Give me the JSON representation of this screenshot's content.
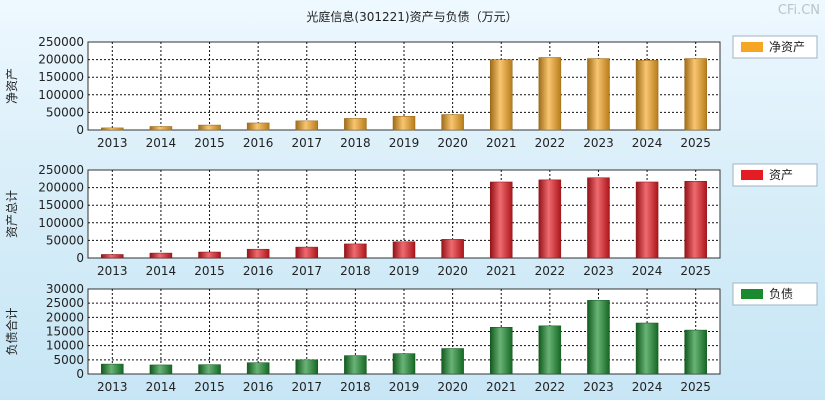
{
  "watermark": "CFi.CN",
  "title": "光庭信息(301221)资产与负债（万元）",
  "chart_data": [
    {
      "type": "bar",
      "ylabel": "净资产",
      "legend": "净资产",
      "color": "#f5a623",
      "ylim": [
        0,
        250000
      ],
      "yticks": [
        0,
        50000,
        100000,
        150000,
        200000,
        250000
      ],
      "categories": [
        "2013",
        "2014",
        "2015",
        "2016",
        "2017",
        "2018",
        "2019",
        "2020",
        "2021",
        "2022",
        "2023",
        "2024",
        "2025"
      ],
      "values": [
        6000,
        10000,
        14000,
        20000,
        26000,
        33000,
        39000,
        44000,
        200000,
        206000,
        203000,
        198000,
        203000
      ]
    },
    {
      "type": "bar",
      "ylabel": "资产总计",
      "legend": "资产",
      "color": "#e51c23",
      "ylim": [
        0,
        250000
      ],
      "yticks": [
        0,
        50000,
        100000,
        150000,
        200000,
        250000
      ],
      "categories": [
        "2013",
        "2014",
        "2015",
        "2016",
        "2017",
        "2018",
        "2019",
        "2020",
        "2021",
        "2022",
        "2023",
        "2024",
        "2025"
      ],
      "values": [
        10000,
        14000,
        17000,
        25000,
        31000,
        40000,
        46000,
        53000,
        216000,
        222000,
        228000,
        216000,
        218000
      ]
    },
    {
      "type": "bar",
      "ylabel": "负债合计",
      "legend": "负债",
      "color": "#1a8a2e",
      "ylim": [
        0,
        30000
      ],
      "yticks": [
        0,
        5000,
        10000,
        15000,
        20000,
        25000,
        30000
      ],
      "categories": [
        "2013",
        "2014",
        "2015",
        "2016",
        "2017",
        "2018",
        "2019",
        "2020",
        "2021",
        "2022",
        "2023",
        "2024",
        "2025"
      ],
      "values": [
        3500,
        3200,
        3300,
        4000,
        5000,
        6500,
        7200,
        9000,
        16500,
        17000,
        26000,
        18000,
        15500
      ]
    }
  ]
}
